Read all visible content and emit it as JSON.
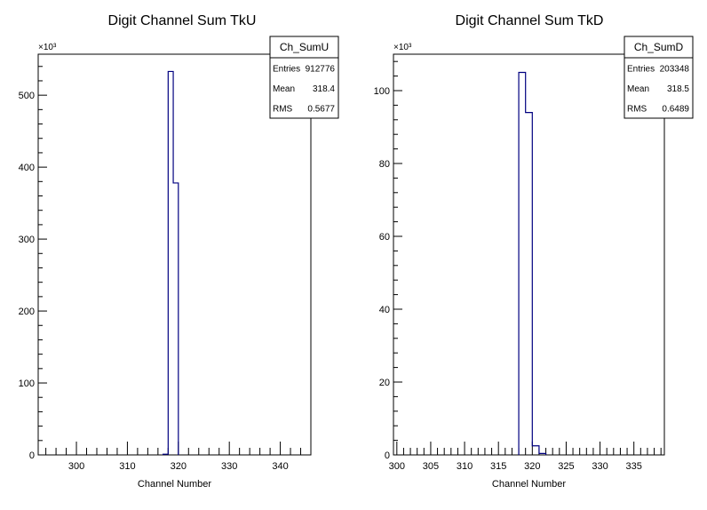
{
  "chart_data": [
    {
      "type": "histogram",
      "title": "Digit Channel Sum TkU",
      "xlabel": "Channel Number",
      "ylabel": "",
      "y_multiplier": "×10³",
      "xlim": [
        292.5,
        346
      ],
      "ylim": [
        0,
        557
      ],
      "x_ticks": [
        300,
        310,
        320,
        330,
        340
      ],
      "y_ticks": [
        0,
        100,
        200,
        300,
        400,
        500
      ],
      "bins": [
        {
          "x0": 317,
          "x1": 318,
          "y": 1.0
        },
        {
          "x0": 318,
          "x1": 319,
          "y": 533
        },
        {
          "x0": 319,
          "x1": 320,
          "y": 378
        }
      ],
      "line_color": "#000080",
      "stats": {
        "name": "Ch_SumU",
        "rows": [
          {
            "label": "Entries",
            "value": "912776"
          },
          {
            "label": "Mean",
            "value": "318.4"
          },
          {
            "label": "RMS",
            "value": "0.5677"
          }
        ]
      }
    },
    {
      "type": "histogram",
      "title": "Digit Channel Sum TkD",
      "xlabel": "Channel Number",
      "ylabel": "",
      "y_multiplier": "×10³",
      "xlim": [
        299.5,
        339.5
      ],
      "ylim": [
        0,
        110
      ],
      "x_ticks": [
        300,
        305,
        310,
        315,
        320,
        325,
        330,
        335
      ],
      "y_ticks": [
        0,
        20,
        40,
        60,
        80,
        100
      ],
      "bins": [
        {
          "x0": 318,
          "x1": 319,
          "y": 105
        },
        {
          "x0": 319,
          "x1": 320,
          "y": 94
        },
        {
          "x0": 320,
          "x1": 321,
          "y": 2.5
        },
        {
          "x0": 321,
          "x1": 322,
          "y": 0.4
        }
      ],
      "line_color": "#000080",
      "stats": {
        "name": "Ch_SumD",
        "rows": [
          {
            "label": "Entries",
            "value": "203348"
          },
          {
            "label": "Mean",
            "value": "318.5"
          },
          {
            "label": "RMS",
            "value": "0.6489"
          }
        ]
      }
    }
  ]
}
